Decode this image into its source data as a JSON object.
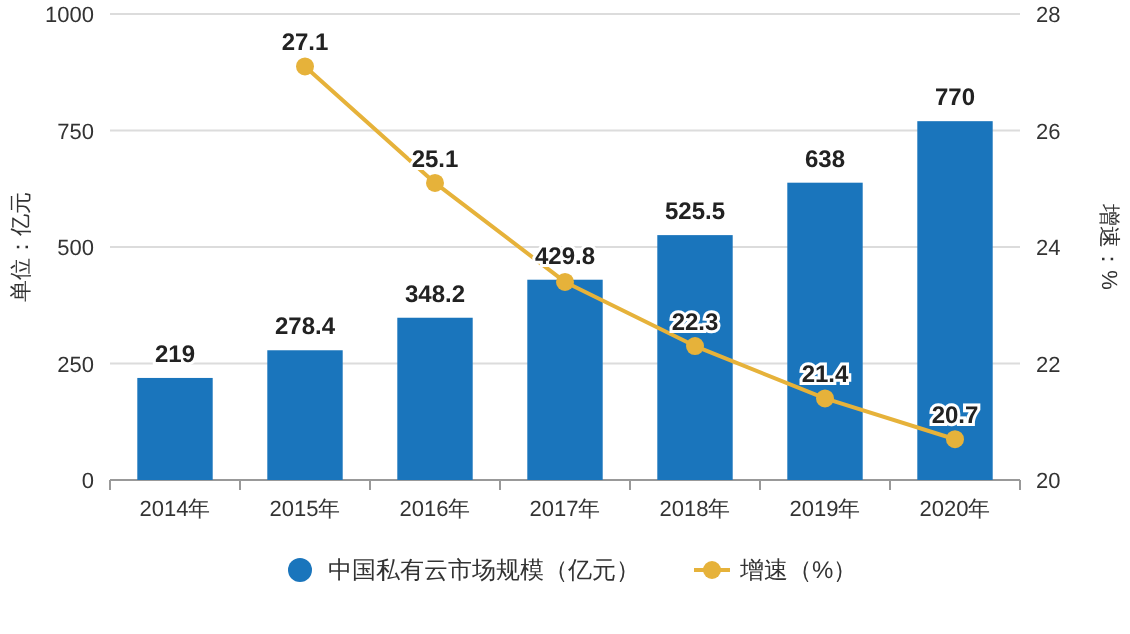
{
  "chart_data": {
    "type": "bar",
    "categories": [
      "2014年",
      "2015年",
      "2016年",
      "2017年",
      "2018年",
      "2019年",
      "2020年"
    ],
    "ylabel": "单位：亿元",
    "y2label": "增速：%",
    "ylim": [
      0,
      1000
    ],
    "yticks": [
      0,
      250,
      500,
      750,
      1000
    ],
    "y2lim": [
      20,
      28
    ],
    "y2ticks": [
      20,
      22,
      24,
      26,
      28
    ],
    "grid": "y",
    "legend": "bottom",
    "series": [
      {
        "name": "中国私有云市场规模（亿元）",
        "color": "#1a75bc",
        "values": [
          219,
          278.4,
          348.2,
          429.8,
          525.5,
          638,
          770
        ],
        "value_labels": [
          "219",
          "278.4",
          "348.2",
          "429.8",
          "525.5",
          "638",
          "770"
        ]
      },
      {
        "name": "增速（%）",
        "type": "line",
        "axis": "y2",
        "color": "#e6b23a",
        "marker": "circle",
        "values": [
          null,
          27.1,
          25.1,
          23.4,
          22.3,
          21.4,
          20.7
        ],
        "value_labels": [
          null,
          "27.1",
          "25.1",
          null,
          "22.3",
          "21.4",
          "20.7"
        ]
      }
    ]
  }
}
